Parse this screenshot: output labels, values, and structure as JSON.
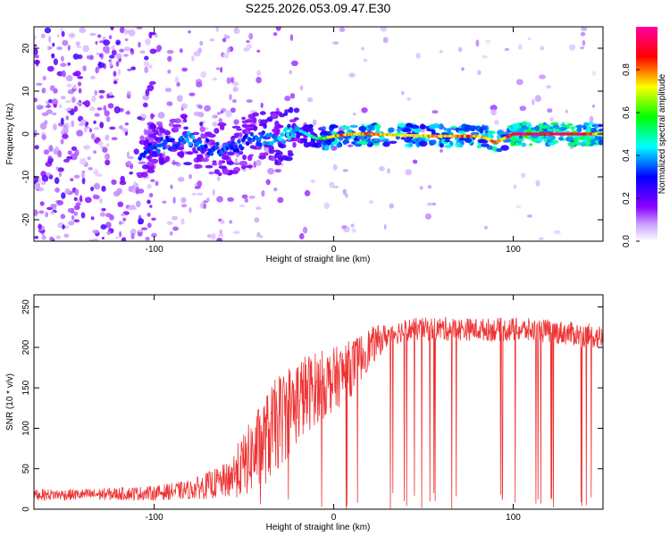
{
  "figure_title": "S225.2026.053.09.47.E30",
  "chart_data": [
    {
      "type": "heatmap",
      "title": "",
      "xlabel": "Height of straight line (km)",
      "ylabel": "Frequency (Hz)",
      "xlim": [
        -167,
        150
      ],
      "ylim": [
        -25,
        25
      ],
      "xticks": [
        -100,
        0,
        100
      ],
      "yticks": [
        -20,
        -10,
        0,
        10,
        20
      ],
      "colorbar": {
        "label": "Normalized spectral amplitude",
        "range": [
          0.0,
          1.0
        ],
        "ticks": [
          0.0,
          0.2,
          0.4,
          0.6,
          0.8
        ],
        "colormap": [
          "#ffffff",
          "#8b00ff",
          "#0000ff",
          "#00ffff",
          "#00ff00",
          "#ffff00",
          "#ff0000",
          "#ff00ff"
        ]
      },
      "ridge": {
        "description": "dominant frequency track (Hz) vs height (km)",
        "x": [
          -108,
          -100,
          -90,
          -80,
          -70,
          -60,
          -50,
          -40,
          -30,
          -25,
          -20,
          -15,
          -10,
          -5,
          0,
          10,
          20,
          40,
          60,
          80,
          85,
          90,
          95,
          100,
          110,
          120,
          130,
          140,
          150
        ],
        "y": [
          -5,
          -3,
          -2,
          -1,
          -3,
          -4,
          -2,
          -1,
          -1,
          0,
          1,
          0,
          -1,
          -1,
          -0.5,
          0,
          0,
          -0.3,
          -0.5,
          -0.5,
          -1,
          -2,
          -1,
          0,
          0,
          0,
          0,
          0,
          0
        ],
        "amplitude": [
          0.3,
          0.35,
          0.3,
          0.4,
          0.3,
          0.35,
          0.3,
          0.35,
          0.4,
          0.45,
          0.4,
          0.45,
          0.5,
          0.6,
          0.8,
          0.75,
          0.8,
          0.7,
          0.75,
          0.8,
          0.7,
          0.85,
          0.7,
          0.9,
          0.95,
          0.9,
          0.95,
          0.9,
          0.7
        ]
      }
    },
    {
      "type": "line",
      "title": "",
      "xlabel": "Height of straight line (km)",
      "ylabel": "SNR (10 * v/v)",
      "xlim": [
        -167,
        150
      ],
      "ylim": [
        0,
        265
      ],
      "xticks": [
        -100,
        0,
        100
      ],
      "yticks": [
        0,
        50,
        100,
        150,
        200,
        250
      ],
      "color": "#ee3333",
      "series": [
        {
          "name": "SNR",
          "x": [
            -167,
            -140,
            -120,
            -100,
            -80,
            -60,
            -50,
            -40,
            -30,
            -20,
            -10,
            0,
            10,
            20,
            30,
            40,
            60,
            80,
            100,
            120,
            140,
            150
          ],
          "y": [
            18,
            18,
            19,
            20,
            24,
            35,
            55,
            80,
            110,
            135,
            150,
            160,
            175,
            200,
            215,
            222,
            223,
            222,
            222,
            220,
            215,
            212
          ],
          "noise_amplitude": [
            7,
            7,
            8,
            9,
            12,
            22,
            40,
            55,
            60,
            55,
            45,
            40,
            35,
            25,
            15,
            14,
            15,
            14,
            15,
            15,
            15,
            15
          ]
        }
      ]
    }
  ]
}
